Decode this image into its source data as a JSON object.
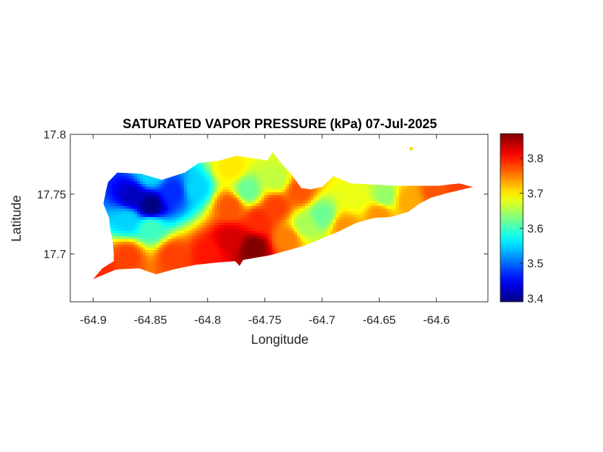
{
  "chart_data": {
    "type": "heatmap",
    "title": "SATURATED VAPOR PRESSURE (kPa) 07-Jul-2025",
    "xlabel": "Longitude",
    "ylabel": "Latitude",
    "xlim": [
      -64.92,
      -64.555
    ],
    "ylim": [
      17.66,
      17.8
    ],
    "xticks": [
      -64.9,
      -64.85,
      -64.8,
      -64.75,
      -64.7,
      -64.65,
      -64.6
    ],
    "xtick_labels": [
      "-64.9",
      "-64.85",
      "-64.8",
      "-64.75",
      "-64.7",
      "-64.65",
      "-64.6"
    ],
    "yticks": [
      17.7,
      17.75,
      17.8
    ],
    "ytick_labels": [
      "17.7",
      "17.75",
      "17.8"
    ],
    "colorbar": {
      "colormap": "jet",
      "range": [
        3.39,
        3.87
      ],
      "ticks": [
        3.4,
        3.5,
        3.6,
        3.7,
        3.8
      ],
      "tick_labels": [
        "3.4",
        "3.5",
        "3.6",
        "3.7",
        "3.8"
      ]
    },
    "grid": false,
    "island_outline_lonlat": [
      [
        -64.9,
        17.679
      ],
      [
        -64.892,
        17.688
      ],
      [
        -64.882,
        17.694
      ],
      [
        -64.882,
        17.7
      ],
      [
        -64.883,
        17.712
      ],
      [
        -64.885,
        17.72
      ],
      [
        -64.886,
        17.73
      ],
      [
        -64.891,
        17.742
      ],
      [
        -64.889,
        17.752
      ],
      [
        -64.887,
        17.76
      ],
      [
        -64.879,
        17.768
      ],
      [
        -64.858,
        17.767
      ],
      [
        -64.84,
        17.762
      ],
      [
        -64.82,
        17.768
      ],
      [
        -64.808,
        17.776
      ],
      [
        -64.79,
        17.778
      ],
      [
        -64.775,
        17.782
      ],
      [
        -64.76,
        17.78
      ],
      [
        -64.748,
        17.778
      ],
      [
        -64.743,
        17.785
      ],
      [
        -64.735,
        17.775
      ],
      [
        -64.727,
        17.767
      ],
      [
        -64.718,
        17.755
      ],
      [
        -64.71,
        17.754
      ],
      [
        -64.7,
        17.756
      ],
      [
        -64.69,
        17.765
      ],
      [
        -64.675,
        17.759
      ],
      [
        -64.655,
        17.758
      ],
      [
        -64.635,
        17.757
      ],
      [
        -64.615,
        17.757
      ],
      [
        -64.598,
        17.757
      ],
      [
        -64.58,
        17.759
      ],
      [
        -64.568,
        17.756
      ],
      [
        -64.59,
        17.751
      ],
      [
        -64.605,
        17.747
      ],
      [
        -64.615,
        17.742
      ],
      [
        -64.625,
        17.735
      ],
      [
        -64.64,
        17.731
      ],
      [
        -64.655,
        17.73
      ],
      [
        -64.67,
        17.726
      ],
      [
        -64.685,
        17.719
      ],
      [
        -64.7,
        17.713
      ],
      [
        -64.715,
        17.707
      ],
      [
        -64.73,
        17.703
      ],
      [
        -64.745,
        17.699
      ],
      [
        -64.757,
        17.697
      ],
      [
        -64.769,
        17.695
      ],
      [
        -64.772,
        17.69
      ],
      [
        -64.776,
        17.694
      ],
      [
        -64.79,
        17.693
      ],
      [
        -64.81,
        17.691
      ],
      [
        -64.83,
        17.687
      ],
      [
        -64.845,
        17.683
      ],
      [
        -64.86,
        17.688
      ],
      [
        -64.88,
        17.687
      ],
      [
        -64.9,
        17.679
      ]
    ],
    "islet_lonlat": [
      -64.622,
      17.788
    ],
    "field_anchors": [
      {
        "lon": -64.85,
        "lat": 17.74,
        "value": 3.39
      },
      {
        "lon": -64.865,
        "lat": 17.748,
        "value": 3.42
      },
      {
        "lon": -64.83,
        "lat": 17.752,
        "value": 3.47
      },
      {
        "lon": -64.81,
        "lat": 17.755,
        "value": 3.55
      },
      {
        "lon": -64.87,
        "lat": 17.728,
        "value": 3.55
      },
      {
        "lon": -64.85,
        "lat": 17.722,
        "value": 3.6
      },
      {
        "lon": -64.765,
        "lat": 17.753,
        "value": 3.62
      },
      {
        "lon": -64.74,
        "lat": 17.762,
        "value": 3.66
      },
      {
        "lon": -64.7,
        "lat": 17.732,
        "value": 3.62
      },
      {
        "lon": -64.715,
        "lat": 17.724,
        "value": 3.65
      },
      {
        "lon": -64.645,
        "lat": 17.748,
        "value": 3.64
      },
      {
        "lon": -64.67,
        "lat": 17.746,
        "value": 3.68
      },
      {
        "lon": -64.76,
        "lat": 17.705,
        "value": 3.87
      },
      {
        "lon": -64.78,
        "lat": 17.712,
        "value": 3.83
      },
      {
        "lon": -64.8,
        "lat": 17.7,
        "value": 3.8
      },
      {
        "lon": -64.755,
        "lat": 17.728,
        "value": 3.79
      },
      {
        "lon": -64.78,
        "lat": 17.74,
        "value": 3.77
      },
      {
        "lon": -64.74,
        "lat": 17.74,
        "value": 3.78
      },
      {
        "lon": -64.83,
        "lat": 17.698,
        "value": 3.78
      },
      {
        "lon": -64.87,
        "lat": 17.698,
        "value": 3.78
      },
      {
        "lon": -64.892,
        "lat": 17.684,
        "value": 3.79
      },
      {
        "lon": -64.73,
        "lat": 17.713,
        "value": 3.75
      },
      {
        "lon": -64.72,
        "lat": 17.752,
        "value": 3.77
      },
      {
        "lon": -64.6,
        "lat": 17.752,
        "value": 3.77
      },
      {
        "lon": -64.58,
        "lat": 17.757,
        "value": 3.78
      },
      {
        "lon": -64.625,
        "lat": 17.745,
        "value": 3.73
      },
      {
        "lon": -64.68,
        "lat": 17.722,
        "value": 3.74
      },
      {
        "lon": -64.65,
        "lat": 17.733,
        "value": 3.74
      },
      {
        "lon": -64.78,
        "lat": 17.772,
        "value": 3.7
      },
      {
        "lon": -64.85,
        "lat": 17.766,
        "value": 3.55
      },
      {
        "lon": -64.622,
        "lat": 17.788,
        "value": 3.7
      }
    ]
  }
}
